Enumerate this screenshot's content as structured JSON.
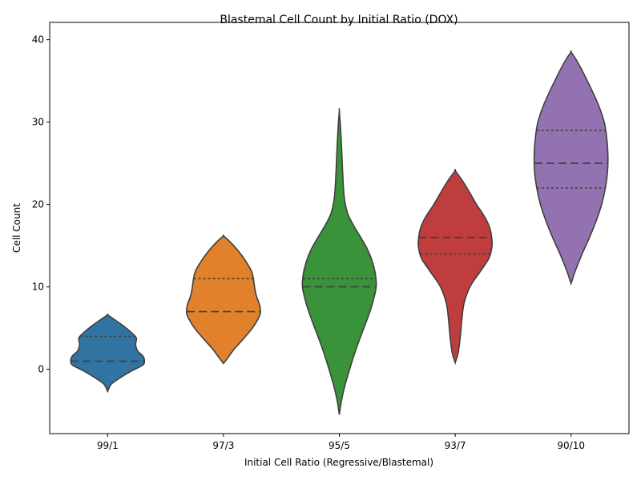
{
  "chart_data": {
    "type": "violin",
    "title": "Blastemal Cell Count by Initial Ratio (DOX)",
    "xlabel": "Initial Cell Ratio (Regressive/Blastemal)",
    "ylabel": "Cell Count",
    "ylim": [
      -7.8,
      42.1
    ],
    "yticks": [
      0,
      10,
      20,
      30,
      40
    ],
    "grid": false,
    "legend": "none",
    "outline_color": "#3f3f3f",
    "categories": [
      "99/1",
      "97/3",
      "95/5",
      "93/7",
      "90/10"
    ],
    "violins": [
      {
        "category": "99/1",
        "color": "#3274a1",
        "median": 1,
        "q1": 1,
        "q3": 4,
        "profile": [
          [
            -2.7,
            0.0
          ],
          [
            -1.8,
            0.1
          ],
          [
            -1.0,
            0.35
          ],
          [
            -0.2,
            0.65
          ],
          [
            0.5,
            0.95
          ],
          [
            1.0,
            1.0
          ],
          [
            1.6,
            0.96
          ],
          [
            2.2,
            0.82
          ],
          [
            3.0,
            0.76
          ],
          [
            3.8,
            0.78
          ],
          [
            4.4,
            0.66
          ],
          [
            5.2,
            0.45
          ],
          [
            6.0,
            0.2
          ],
          [
            6.6,
            0.0
          ]
        ]
      },
      {
        "category": "97/3",
        "color": "#e1812c",
        "median": 7,
        "q1": 7,
        "q3": 11,
        "profile": [
          [
            0.7,
            0.0
          ],
          [
            1.3,
            0.1
          ],
          [
            2.5,
            0.3
          ],
          [
            3.6,
            0.52
          ],
          [
            4.8,
            0.75
          ],
          [
            5.8,
            0.9
          ],
          [
            6.8,
            1.0
          ],
          [
            7.8,
            0.98
          ],
          [
            8.8,
            0.9
          ],
          [
            9.8,
            0.85
          ],
          [
            10.8,
            0.82
          ],
          [
            11.8,
            0.77
          ],
          [
            12.8,
            0.65
          ],
          [
            13.8,
            0.5
          ],
          [
            14.8,
            0.32
          ],
          [
            15.6,
            0.15
          ],
          [
            16.2,
            0.0
          ]
        ]
      },
      {
        "category": "95/5",
        "color": "#3a923a",
        "median": 10,
        "q1": 10,
        "q3": 11,
        "profile": [
          [
            -5.5,
            0.0
          ],
          [
            -4.0,
            0.05
          ],
          [
            -2.0,
            0.15
          ],
          [
            0.0,
            0.28
          ],
          [
            2.0,
            0.42
          ],
          [
            4.0,
            0.58
          ],
          [
            6.0,
            0.75
          ],
          [
            8.0,
            0.9
          ],
          [
            10.0,
            1.0
          ],
          [
            11.5,
            0.98
          ],
          [
            13.0,
            0.9
          ],
          [
            14.5,
            0.77
          ],
          [
            16.0,
            0.58
          ],
          [
            17.5,
            0.38
          ],
          [
            19.0,
            0.22
          ],
          [
            21.0,
            0.13
          ],
          [
            24.0,
            0.09
          ],
          [
            27.0,
            0.06
          ],
          [
            29.5,
            0.03
          ],
          [
            31.4,
            0.0
          ]
        ]
      },
      {
        "category": "93/7",
        "color": "#c03d3e",
        "median": 16,
        "q1": 14,
        "q3": 16,
        "profile": [
          [
            0.8,
            0.0
          ],
          [
            2.0,
            0.08
          ],
          [
            4.0,
            0.14
          ],
          [
            6.0,
            0.18
          ],
          [
            8.0,
            0.24
          ],
          [
            10.0,
            0.4
          ],
          [
            12.0,
            0.7
          ],
          [
            13.5,
            0.92
          ],
          [
            15.0,
            1.0
          ],
          [
            16.0,
            0.99
          ],
          [
            17.0,
            0.95
          ],
          [
            18.0,
            0.86
          ],
          [
            19.0,
            0.73
          ],
          [
            20.0,
            0.58
          ],
          [
            21.0,
            0.45
          ],
          [
            22.0,
            0.32
          ],
          [
            23.0,
            0.18
          ],
          [
            24.1,
            0.0
          ]
        ]
      },
      {
        "category": "90/10",
        "color": "#9372b2",
        "median": 25,
        "q1": 22,
        "q3": 29,
        "profile": [
          [
            10.4,
            0.0
          ],
          [
            12.0,
            0.12
          ],
          [
            14.0,
            0.3
          ],
          [
            16.0,
            0.5
          ],
          [
            18.0,
            0.68
          ],
          [
            20.0,
            0.83
          ],
          [
            22.0,
            0.93
          ],
          [
            24.0,
            0.99
          ],
          [
            26.0,
            1.0
          ],
          [
            28.0,
            0.97
          ],
          [
            30.0,
            0.9
          ],
          [
            32.0,
            0.75
          ],
          [
            34.0,
            0.55
          ],
          [
            36.0,
            0.33
          ],
          [
            37.5,
            0.15
          ],
          [
            38.5,
            0.0
          ]
        ]
      }
    ]
  }
}
